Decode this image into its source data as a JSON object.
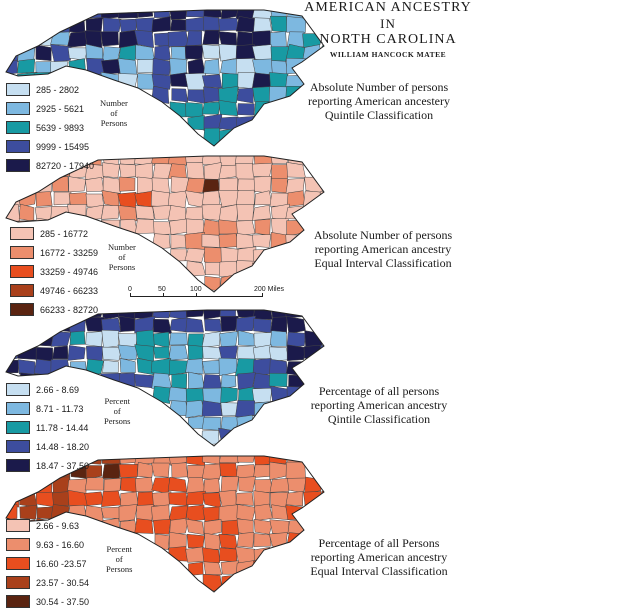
{
  "title": {
    "line1": "AMERICAN ANCESTRY",
    "line2": "IN",
    "line3": "NORTH CAROLINA",
    "author": "WILLIAM HANCOCK MATEE"
  },
  "maps": [
    {
      "caption": [
        "Absolute Number of persons",
        "reporting American ancestery",
        "Quintile Classification"
      ],
      "unit_label": [
        "Number",
        "of",
        "Persons"
      ],
      "classes": [
        {
          "label": "285 - 2802",
          "color": "#c6dff1"
        },
        {
          "label": "2925 - 5621",
          "color": "#7db8e0"
        },
        {
          "label": "5639 - 9893",
          "color": "#189aa3"
        },
        {
          "label": "9999 - 15495",
          "color": "#3d4d9e"
        },
        {
          "label": "82720 - 17940",
          "color": "#1b1a4b"
        }
      ]
    },
    {
      "caption": [
        "Absolute Number of persons",
        "reporting American ancestry",
        "Equal Interval Classification"
      ],
      "unit_label": [
        "Number",
        "of",
        "Persons"
      ],
      "classes": [
        {
          "label": "285 - 16772",
          "color": "#f4c3b4"
        },
        {
          "label": "16772 - 33259",
          "color": "#ec8e6d"
        },
        {
          "label": "33259 - 49746",
          "color": "#e84e1f"
        },
        {
          "label": "49746 - 66233",
          "color": "#a9401b"
        },
        {
          "label": "66233 - 82720",
          "color": "#5a2411"
        }
      ]
    },
    {
      "caption": [
        "Percentage of all persons",
        "reporting American ancestry",
        "Qintile Classification"
      ],
      "unit_label": [
        "Percent",
        "of",
        "Persons"
      ],
      "classes": [
        {
          "label": "2.66 - 8.69",
          "color": "#c6dff1"
        },
        {
          "label": "8.71 - 11.73",
          "color": "#7db8e0"
        },
        {
          "label": "11.78 - 14.44",
          "color": "#189aa3"
        },
        {
          "label": "14.48 - 18.20",
          "color": "#3d4d9e"
        },
        {
          "label": "18.47 - 37.50",
          "color": "#1b1a4b"
        }
      ]
    },
    {
      "caption": [
        "Percentage of all Persons",
        "reporting American ancestry",
        "Equal Interval Classification"
      ],
      "unit_label": [
        "Percent",
        "of",
        "Persons"
      ],
      "classes": [
        {
          "label": "2.66 - 9.63",
          "color": "#f4c3b4"
        },
        {
          "label": "9.63 - 16.60",
          "color": "#ec8e6d"
        },
        {
          "label": "16.60 -23.57",
          "color": "#e84e1f"
        },
        {
          "label": "23.57 - 30.54",
          "color": "#a9401b"
        },
        {
          "label": "30.54 - 37.50",
          "color": "#5a2411"
        }
      ]
    }
  ],
  "scale": {
    "ticks": [
      "0",
      "50",
      "100",
      "200 Miles"
    ]
  }
}
